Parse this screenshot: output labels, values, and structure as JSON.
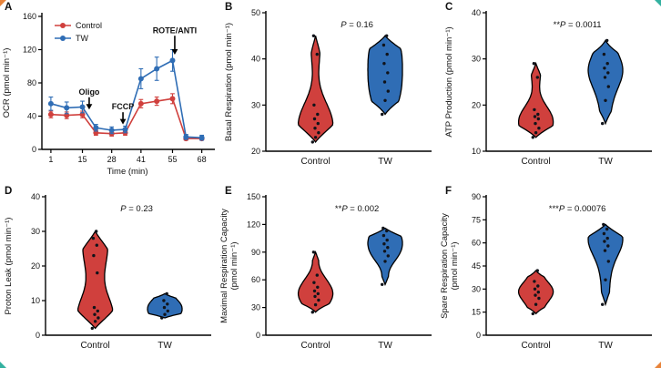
{
  "colors": {
    "control": "#d0403d",
    "tw": "#2f6db5",
    "points": "#10131a",
    "axis": "#000000"
  },
  "corner_marks": {
    "top_left": "#e8833a",
    "top_right": "#33b1a0",
    "bottom_left": "#33b1a0",
    "bottom_right": "#e8833a"
  },
  "chart_data": [
    {
      "panel": "A",
      "type": "line",
      "xlabel": "Time (min)",
      "ylabel": "OCR (pmol min⁻¹)",
      "xlim": [
        -3,
        73
      ],
      "xticks": [
        1,
        15,
        28,
        41,
        55,
        68
      ],
      "ylim": [
        0,
        160
      ],
      "yticks": [
        0,
        40,
        80,
        120,
        160
      ],
      "x": [
        1,
        8,
        15,
        21,
        28,
        34,
        41,
        48,
        55,
        61,
        68
      ],
      "series": [
        {
          "name": "Control",
          "color_key": "control",
          "values": [
            42,
            41,
            42,
            20,
            19,
            20,
            55,
            58,
            61,
            13,
            13
          ],
          "err": [
            4,
            4,
            4,
            3,
            3,
            3,
            5,
            5,
            6,
            2,
            2
          ]
        },
        {
          "name": "TW",
          "color_key": "tw",
          "values": [
            55,
            50,
            51,
            26,
            23,
            24,
            85,
            97,
            107,
            15,
            14
          ],
          "err": [
            8,
            7,
            7,
            4,
            4,
            4,
            12,
            14,
            13,
            3,
            3
          ]
        }
      ],
      "annotations": [
        {
          "label": "Oligo",
          "x": 18,
          "label_y": 66,
          "tip_y": 48
        },
        {
          "label": "FCCP",
          "x": 33,
          "label_y": 48,
          "tip_y": 30
        },
        {
          "label": "ROTE/ANTI",
          "x": 56,
          "label_y": 140,
          "tip_y": 114
        }
      ],
      "legend": [
        "Control",
        "TW"
      ]
    },
    {
      "panel": "B",
      "type": "violin",
      "ylabel": [
        "Basal Respiration (pmol min⁻¹)"
      ],
      "ylim": [
        20,
        50
      ],
      "yticks": [
        20,
        30,
        40,
        50
      ],
      "categories": [
        "Control",
        "TW"
      ],
      "p": {
        "stars": "",
        "value": "0.16"
      },
      "series": [
        {
          "name": "Control",
          "color_key": "control",
          "values": [
            22,
            23,
            24,
            25,
            26,
            27,
            28,
            30,
            41,
            45
          ]
        },
        {
          "name": "TW",
          "color_key": "tw",
          "values": [
            28,
            31,
            33,
            35,
            37,
            39,
            41,
            43,
            45
          ]
        }
      ]
    },
    {
      "panel": "C",
      "type": "violin",
      "ylabel": [
        "ATP Production (pmol min⁻¹)"
      ],
      "ylim": [
        10,
        40
      ],
      "yticks": [
        10,
        20,
        30,
        40
      ],
      "categories": [
        "Control",
        "TW"
      ],
      "p": {
        "stars": "**",
        "value": "0.0011"
      },
      "series": [
        {
          "name": "Control",
          "color_key": "control",
          "values": [
            13,
            14,
            15,
            16,
            17,
            17.5,
            18,
            19,
            26,
            29
          ]
        },
        {
          "name": "TW",
          "color_key": "tw",
          "values": [
            16,
            21,
            24,
            26,
            27,
            28,
            29,
            31,
            34
          ]
        }
      ]
    },
    {
      "panel": "D",
      "type": "violin",
      "ylabel": [
        "Proton Leak (pmol min⁻¹)"
      ],
      "ylim": [
        0,
        40
      ],
      "yticks": [
        0,
        10,
        20,
        30,
        40
      ],
      "categories": [
        "Control",
        "TW"
      ],
      "p": {
        "stars": "",
        "value": "0.23"
      },
      "series": [
        {
          "name": "Control",
          "color_key": "control",
          "values": [
            2,
            4,
            5,
            6,
            7,
            8,
            18,
            23,
            26,
            28,
            30
          ]
        },
        {
          "name": "TW",
          "color_key": "tw",
          "values": [
            5,
            6,
            7,
            8,
            9,
            10,
            12
          ]
        }
      ]
    },
    {
      "panel": "E",
      "type": "violin",
      "ylabel": [
        "Maximal Respiration Capacity",
        "(pmol min⁻¹)"
      ],
      "ylim": [
        0,
        150
      ],
      "yticks": [
        0,
        30,
        60,
        90,
        120,
        150
      ],
      "categories": [
        "Control",
        "TW"
      ],
      "p": {
        "stars": "**",
        "value": "0.002"
      },
      "series": [
        {
          "name": "Control",
          "color_key": "control",
          "values": [
            25,
            33,
            38,
            42,
            45,
            48,
            52,
            57,
            65,
            90
          ]
        },
        {
          "name": "TW",
          "color_key": "tw",
          "values": [
            55,
            80,
            86,
            91,
            95,
            99,
            103,
            108,
            113,
            116
          ]
        }
      ]
    },
    {
      "panel": "F",
      "type": "violin",
      "ylabel": [
        "Spare Respiration Capacity",
        "(pmol min⁻¹)"
      ],
      "ylim": [
        0,
        90
      ],
      "yticks": [
        0,
        15,
        30,
        45,
        60,
        75,
        90
      ],
      "categories": [
        "Control",
        "TW"
      ],
      "p": {
        "stars": "***",
        "value": "0.00076"
      },
      "series": [
        {
          "name": "Control",
          "color_key": "control",
          "values": [
            14,
            20,
            24,
            26,
            28,
            30,
            32,
            35,
            42
          ]
        },
        {
          "name": "TW",
          "color_key": "tw",
          "values": [
            20,
            36,
            48,
            55,
            58,
            61,
            63,
            66,
            69,
            72
          ]
        }
      ]
    }
  ]
}
